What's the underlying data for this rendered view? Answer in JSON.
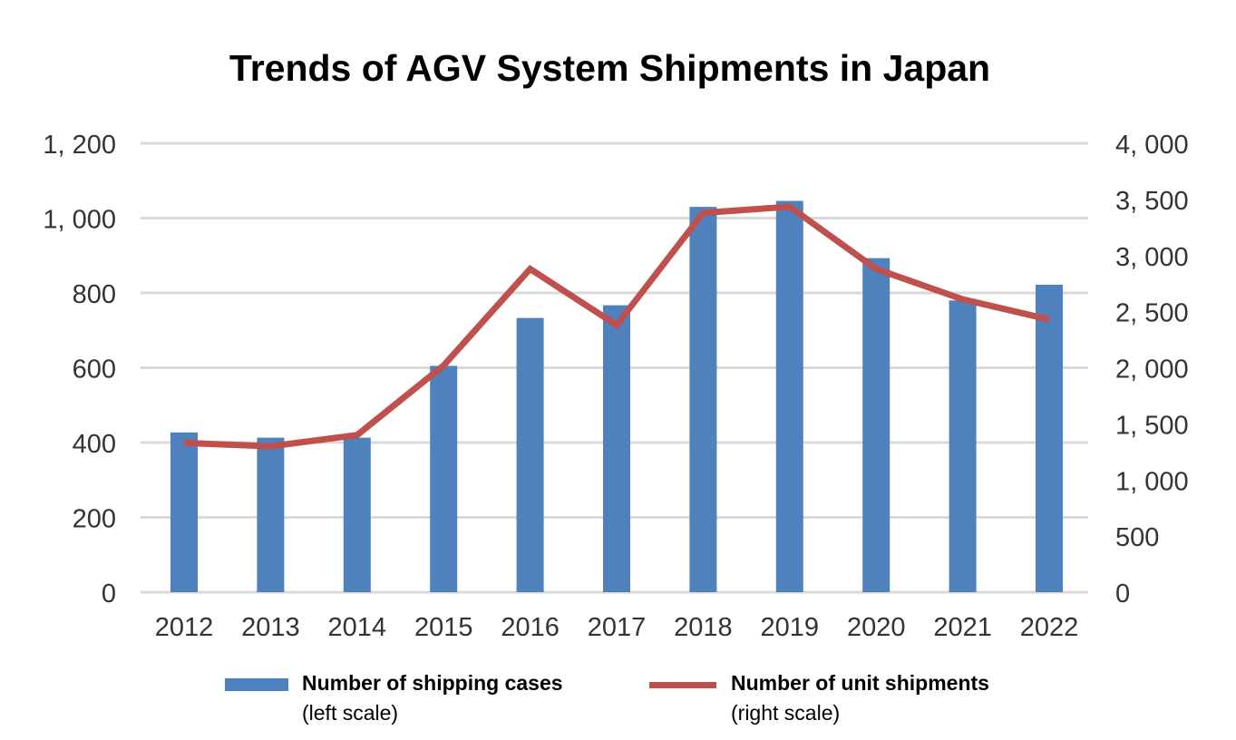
{
  "chart_data": {
    "type": "bar+line",
    "title": "Trends of AGV System Shipments in Japan",
    "categories": [
      "2012",
      "2013",
      "2014",
      "2015",
      "2016",
      "2017",
      "2018",
      "2019",
      "2020",
      "2021",
      "2022"
    ],
    "series": [
      {
        "name": "Number of shipping cases",
        "note": "(left scale)",
        "type": "bar",
        "axis": "left",
        "color": "#4f81bd",
        "values": [
          427,
          413,
          413,
          605,
          733,
          767,
          1030,
          1046,
          893,
          780,
          822
        ]
      },
      {
        "name": "Number of unit shipments",
        "note": "(right scale)",
        "type": "line",
        "axis": "right",
        "color": "#c0504d",
        "values": [
          1330,
          1300,
          1400,
          2020,
          2880,
          2380,
          3380,
          3435,
          2880,
          2610,
          2430
        ]
      }
    ],
    "left_axis": {
      "ylim": [
        0,
        1200
      ],
      "ticks": [
        0,
        200,
        400,
        600,
        800,
        1000,
        1200
      ],
      "tick_labels": [
        "0",
        "200",
        "400",
        "600",
        "800",
        "1, 000",
        "1, 200"
      ]
    },
    "right_axis": {
      "ylim": [
        0,
        4000
      ],
      "ticks": [
        0,
        500,
        1000,
        1500,
        2000,
        2500,
        3000,
        3500,
        4000
      ],
      "tick_labels": [
        "0",
        "500",
        "1, 000",
        "1, 500",
        "2, 000",
        "2, 500",
        "3, 000",
        "3, 500",
        "4, 000"
      ]
    },
    "grid": true,
    "gridline_color": "#d9d9d9",
    "legend_placement": "bottom"
  }
}
